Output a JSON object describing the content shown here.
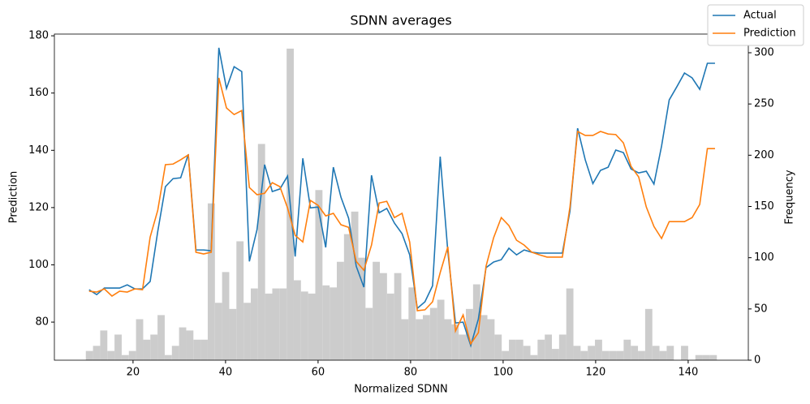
{
  "chart_data": {
    "type": "line",
    "title": "SDNN averages",
    "xlabel": "Normalized SDNN",
    "ylabel": "Prediction",
    "y2label": "Frequency",
    "xlim": [
      3,
      153
    ],
    "xticks": [
      20,
      40,
      60,
      80,
      100,
      120,
      140
    ],
    "ylim": [
      66.7,
      180.6
    ],
    "yticks": [
      80,
      100,
      120,
      140,
      160,
      180
    ],
    "y2lim": [
      0,
      318.2
    ],
    "y2ticks": [
      0,
      50,
      100,
      150,
      200,
      250,
      300
    ],
    "legend": "upper right",
    "histogram": {
      "axis": "y2",
      "color": "#cccccc",
      "bins": [
        9.8,
        11.35,
        12.9,
        14.45,
        16,
        17.55,
        19.1,
        20.65,
        22.2,
        23.75,
        25.3,
        26.85,
        28.4,
        29.95,
        31.5,
        33.05,
        34.6,
        36.15,
        37.7,
        39.25,
        40.8,
        42.35,
        43.9,
        45.45,
        47,
        48.55,
        50.1,
        51.65,
        53.2,
        54.75,
        56.3,
        57.85,
        59.4,
        60.95,
        62.5,
        64.05,
        65.6,
        67.15,
        68.7,
        70.25,
        71.8,
        73.35,
        74.9,
        76.45,
        78,
        79.55,
        81.1,
        82.65,
        84.2,
        85.75,
        87.3,
        88.85,
        90.4,
        91.95,
        93.5,
        95.05,
        96.6,
        98.15,
        99.7,
        101.25,
        102.8,
        104.35,
        105.9,
        107.45,
        109,
        110.55,
        112.1,
        113.65,
        115.2,
        116.75,
        118.3,
        119.85,
        121.4,
        122.95,
        124.5,
        126.05,
        127.6,
        129.15,
        130.7,
        132.25,
        133.8,
        135.35,
        136.9,
        138.45,
        140,
        141.55,
        143.1,
        144.65,
        146.2
      ],
      "counts": [
        9,
        14,
        29,
        9,
        25,
        5,
        9,
        40,
        20,
        25,
        44,
        5,
        14,
        32,
        29,
        20,
        20,
        153,
        56,
        86,
        50,
        116,
        56,
        70,
        211,
        65,
        70,
        70,
        304,
        78,
        67,
        65,
        166,
        73,
        71,
        96,
        123,
        145,
        100,
        51,
        96,
        85,
        65,
        85,
        40,
        71,
        40,
        44,
        51,
        59,
        40,
        35,
        25,
        50,
        74,
        44,
        40,
        25,
        9,
        20,
        20,
        14,
        5,
        20,
        25,
        11,
        25,
        70,
        14,
        9,
        14,
        20,
        9,
        9,
        9,
        20,
        14,
        9,
        50,
        14,
        9,
        14,
        0,
        14,
        0,
        5,
        5,
        5
      ]
    },
    "x": [
      10.5,
      12.15,
      13.8,
      15.45,
      17.1,
      18.75,
      20.4,
      22.05,
      23.7,
      25.35,
      27,
      28.65,
      30.3,
      31.95,
      33.6,
      35.25,
      36.9,
      38.55,
      40.2,
      41.85,
      43.5,
      45.15,
      46.8,
      48.45,
      50.1,
      51.75,
      53.4,
      55.05,
      56.7,
      58.35,
      60,
      61.65,
      63.3,
      64.95,
      66.6,
      68.25,
      69.9,
      71.55,
      73.2,
      74.85,
      76.5,
      78.15,
      79.8,
      81.45,
      83.1,
      84.75,
      86.4,
      88.05,
      89.7,
      91.35,
      93,
      94.65,
      96.3,
      97.95,
      99.6,
      101.25,
      102.9,
      104.55,
      106.2,
      107.85,
      109.5,
      111.15,
      112.8,
      114.45,
      116.1,
      117.75,
      119.4,
      121.05,
      122.7,
      124.35,
      126,
      127.65,
      129.3,
      130.95,
      132.6,
      134.25,
      135.9,
      137.55,
      139.2,
      140.85,
      142.5,
      144.15,
      145.8
    ],
    "series": [
      {
        "name": "Actual",
        "color": "#1f77b4",
        "values": [
          91.3,
          89.6,
          91.9,
          91.9,
          91.9,
          93.0,
          91.6,
          91.6,
          94.2,
          111.7,
          127.3,
          130.1,
          130.4,
          138.6,
          105.2,
          105.2,
          104.9,
          175.8,
          161.6,
          169.2,
          167.5,
          101.2,
          112.3,
          135.0,
          125.6,
          126.5,
          131.0,
          102.9,
          137.2,
          119.9,
          120.2,
          106.1,
          134.1,
          123.6,
          116.3,
          99.5,
          92.2,
          131.3,
          118.2,
          119.7,
          114.6,
          110.9,
          103.5,
          84.8,
          87.1,
          92.7,
          137.8,
          104.6,
          79.7,
          80.0,
          71.8,
          81.1,
          99.0,
          101.0,
          101.8,
          105.8,
          103.5,
          105.2,
          104.4,
          104.1,
          104.1,
          104.1,
          104.1,
          118.8,
          147.7,
          136.7,
          128.4,
          133.0,
          134.1,
          140.1,
          139.2,
          133.5,
          132.1,
          132.7,
          128.2,
          141.5,
          157.6,
          162.2,
          167.0,
          165.3,
          161.3,
          170.4,
          170.4
        ]
      },
      {
        "name": "Prediction",
        "color": "#ff7f0e",
        "values": [
          90.8,
          90.5,
          91.6,
          89.1,
          90.8,
          90.5,
          91.6,
          91.3,
          109.7,
          119.1,
          135.0,
          135.2,
          136.7,
          138.4,
          104.4,
          103.8,
          104.4,
          165.3,
          154.8,
          152.5,
          153.9,
          127.0,
          124.5,
          125.0,
          128.7,
          127.3,
          119.9,
          110.3,
          108.0,
          122.5,
          120.8,
          117.1,
          118.0,
          114.0,
          113.1,
          101.2,
          98.1,
          106.9,
          121.6,
          122.2,
          116.5,
          118.0,
          108.0,
          84.0,
          84.3,
          87.1,
          97.3,
          106.3,
          76.9,
          82.5,
          72.4,
          76.3,
          99.5,
          109.5,
          116.5,
          113.7,
          108.6,
          106.9,
          104.4,
          103.5,
          102.7,
          102.7,
          102.7,
          120.2,
          146.6,
          145.2,
          145.2,
          146.6,
          145.7,
          145.5,
          142.6,
          134.4,
          130.7,
          120.2,
          113.4,
          109.2,
          115.1,
          115.1,
          115.1,
          116.5,
          121.1,
          140.6,
          140.6
        ]
      }
    ]
  }
}
